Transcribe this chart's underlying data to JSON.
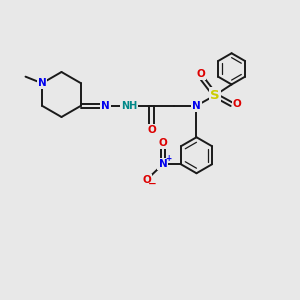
{
  "bg_color": "#e8e8e8",
  "bond_color": "#1a1a1a",
  "N_color": "#0000ee",
  "O_color": "#dd0000",
  "S_color": "#cccc00",
  "H_color": "#008888",
  "font_size": 7.5,
  "figsize": [
    3.0,
    3.0
  ],
  "dpi": 100,
  "xlim": [
    0,
    10
  ],
  "ylim": [
    0,
    10
  ]
}
